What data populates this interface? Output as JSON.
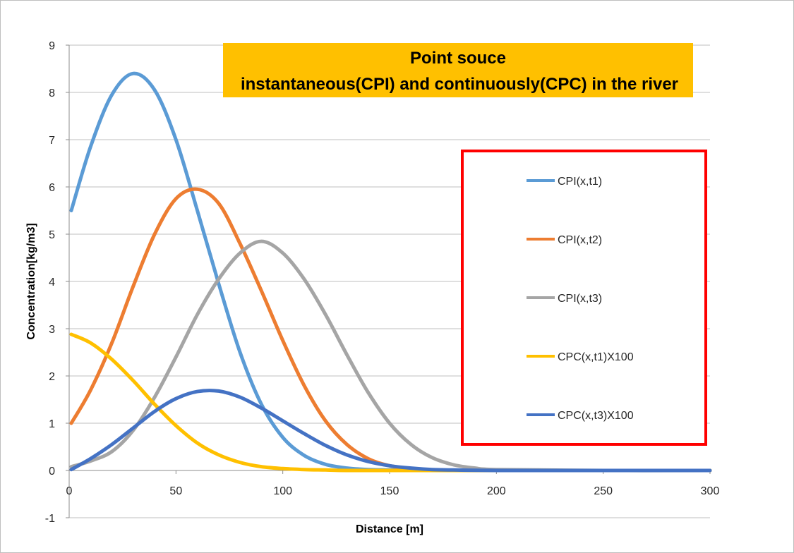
{
  "chart_data": {
    "type": "line",
    "title": "Point souce",
    "subtitle": "instantaneous(CPI) and continuously(CPC) in the river",
    "xlabel": "Distance [m]",
    "ylabel": "Concentration[kg/m3]",
    "xlim": [
      0,
      300
    ],
    "ylim": [
      -1,
      9
    ],
    "xticks": [
      "0",
      "50",
      "100",
      "150",
      "200",
      "250",
      "300"
    ],
    "yticks": [
      "-1",
      "0",
      "1",
      "2",
      "3",
      "4",
      "5",
      "6",
      "7",
      "8",
      "9"
    ],
    "grid": true,
    "legend_position": "right",
    "title_box_color": "#FFC000",
    "legend_border_color": "#FF0000",
    "series": [
      {
        "name": "CPI(x,t1)",
        "color": "#5B9BD5",
        "x": [
          1,
          10,
          20,
          30,
          40,
          50,
          60,
          70,
          80,
          90,
          100,
          110,
          120,
          130,
          140,
          150,
          160,
          170,
          180,
          200,
          250,
          300
        ],
        "y": [
          5.5,
          6.85,
          7.95,
          8.4,
          8.05,
          7.0,
          5.5,
          3.95,
          2.5,
          1.4,
          0.7,
          0.32,
          0.13,
          0.05,
          0.02,
          0.01,
          0,
          0,
          0,
          0,
          0,
          0
        ]
      },
      {
        "name": "CPI(x,t2)",
        "color": "#ED7D31",
        "x": [
          1,
          10,
          20,
          30,
          40,
          50,
          60,
          70,
          80,
          90,
          100,
          110,
          120,
          130,
          140,
          150,
          160,
          170,
          180,
          200,
          250,
          300
        ],
        "y": [
          1.0,
          1.7,
          2.7,
          3.9,
          5.0,
          5.75,
          5.95,
          5.65,
          4.8,
          3.8,
          2.75,
          1.8,
          1.05,
          0.55,
          0.25,
          0.1,
          0.04,
          0.01,
          0,
          0,
          0,
          0
        ]
      },
      {
        "name": "CPI(x,t3)",
        "color": "#A5A5A5",
        "x": [
          1,
          10,
          20,
          30,
          40,
          50,
          60,
          70,
          80,
          90,
          100,
          110,
          120,
          130,
          140,
          150,
          160,
          170,
          180,
          190,
          200,
          250,
          300
        ],
        "y": [
          0.08,
          0.2,
          0.4,
          0.85,
          1.55,
          2.4,
          3.3,
          4.05,
          4.6,
          4.85,
          4.6,
          4.05,
          3.3,
          2.45,
          1.65,
          1.0,
          0.55,
          0.27,
          0.12,
          0.05,
          0.02,
          0,
          0
        ]
      },
      {
        "name": "CPC(x,t1)X100",
        "color": "#FFC000",
        "x": [
          1,
          10,
          20,
          30,
          40,
          50,
          60,
          70,
          80,
          90,
          100,
          110,
          120,
          130,
          150,
          200,
          250,
          300
        ],
        "y": [
          2.88,
          2.7,
          2.35,
          1.9,
          1.4,
          0.95,
          0.58,
          0.33,
          0.17,
          0.08,
          0.04,
          0.02,
          0.01,
          0,
          0,
          0,
          0,
          0
        ]
      },
      {
        "name": "CPC(x,t3)X100",
        "color": "#4472C4",
        "x": [
          1,
          10,
          20,
          30,
          40,
          50,
          60,
          70,
          80,
          90,
          100,
          110,
          120,
          130,
          140,
          150,
          160,
          170,
          180,
          200,
          250,
          300
        ],
        "y": [
          0.02,
          0.25,
          0.55,
          0.9,
          1.25,
          1.52,
          1.67,
          1.68,
          1.55,
          1.32,
          1.05,
          0.78,
          0.53,
          0.33,
          0.19,
          0.1,
          0.05,
          0.02,
          0.01,
          0,
          0,
          0
        ]
      }
    ]
  }
}
